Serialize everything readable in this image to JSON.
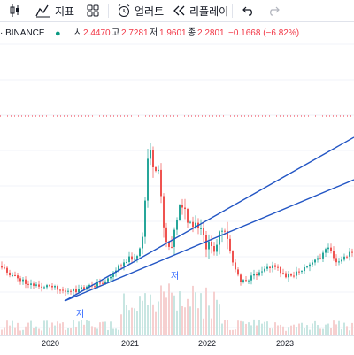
{
  "toolbar": {
    "left_icon": "candles-icon",
    "indicators_label": "지표",
    "layouts_icon": "layouts-icon",
    "alert_label": "얼러트",
    "replay_label": "리플레이",
    "undo_icon": "undo-icon",
    "redo_icon": "redo-icon"
  },
  "legend": {
    "symbol": "· BINANCE",
    "open_label": "시",
    "open_value": "2.4470",
    "high_label": "고",
    "high_value": "2.7281",
    "low_label": "저",
    "low_value": "1.9601",
    "close_label": "종",
    "close_value": "2.2801",
    "change": "−0.1668 (−6.82%)"
  },
  "colors": {
    "up": "#26a69a",
    "down": "#ef5350",
    "trendline": "#2255c4",
    "price_line": "#f23645"
  },
  "annotations": [
    {
      "text": "저"
    },
    {
      "text": "저"
    }
  ],
  "chart_data": {
    "type": "candlestick",
    "x_ticks": [
      "2020",
      "2021",
      "2022",
      "2023"
    ]
  }
}
